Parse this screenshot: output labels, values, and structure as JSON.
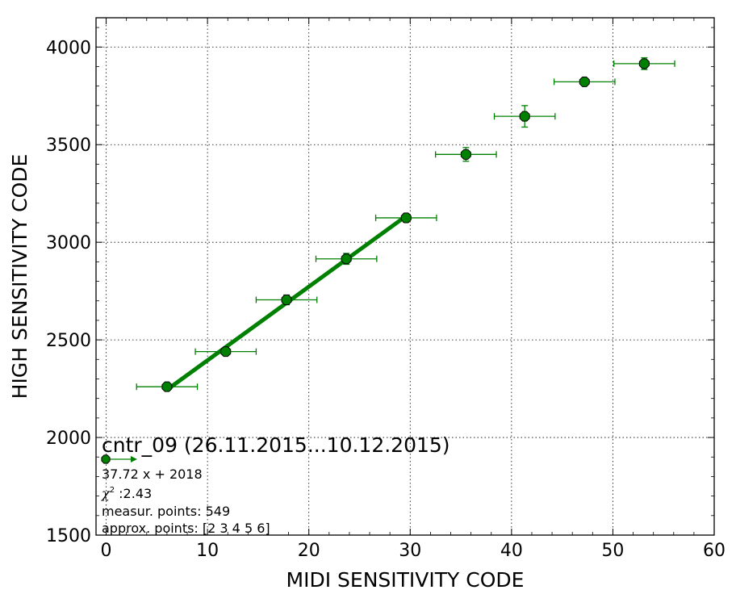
{
  "chart_data": {
    "type": "scatter",
    "title": "",
    "xlabel": "MIDI SENSITIVITY CODE",
    "ylabel": "HIGH SENSITIVITY CODE",
    "xlim": [
      -1,
      60
    ],
    "ylim": [
      1500,
      4150
    ],
    "grid": true,
    "x_ticks": [
      "0",
      "10",
      "20",
      "30",
      "40",
      "50",
      "60"
    ],
    "y_ticks": [
      "1500",
      "2000",
      "2500",
      "3000",
      "3500",
      "4000"
    ],
    "colors": {
      "series": "#008000",
      "marker_edge": "#000000",
      "fit": "#008000"
    },
    "series": [
      {
        "points": [
          {
            "x": 6.0,
            "y": 2260,
            "xerr": 3.0,
            "yerr": 18
          },
          {
            "x": 11.8,
            "y": 2440,
            "xerr": 3.0,
            "yerr": 15
          },
          {
            "x": 17.8,
            "y": 2705,
            "xerr": 3.0,
            "yerr": 25
          },
          {
            "x": 23.7,
            "y": 2915,
            "xerr": 3.0,
            "yerr": 28
          },
          {
            "x": 29.6,
            "y": 3125,
            "xerr": 3.0,
            "yerr": 22
          },
          {
            "x": 35.5,
            "y": 3450,
            "xerr": 3.0,
            "yerr": 35
          },
          {
            "x": 41.3,
            "y": 3645,
            "xerr": 3.0,
            "yerr": 55
          },
          {
            "x": 47.2,
            "y": 3822,
            "xerr": 3.0,
            "yerr": 15
          },
          {
            "x": 53.1,
            "y": 3915,
            "xerr": 3.0,
            "yerr": 30
          }
        ]
      }
    ],
    "fit": {
      "slope": 37.72,
      "intercept": 2018,
      "x_from": 6.0,
      "x_to": 29.6
    },
    "legend": {
      "placement": "bottom-left",
      "title": "cntr_09 (26.11.2015...10.12.2015)",
      "equation": "37.72 x + 2018",
      "chi_symbol": "χ",
      "chi_sup": "2",
      "chi_value": " :2.43",
      "measur_points": "measur. points: 549",
      "approx_points": "approx. points: [2 3 4 5 6]"
    }
  }
}
